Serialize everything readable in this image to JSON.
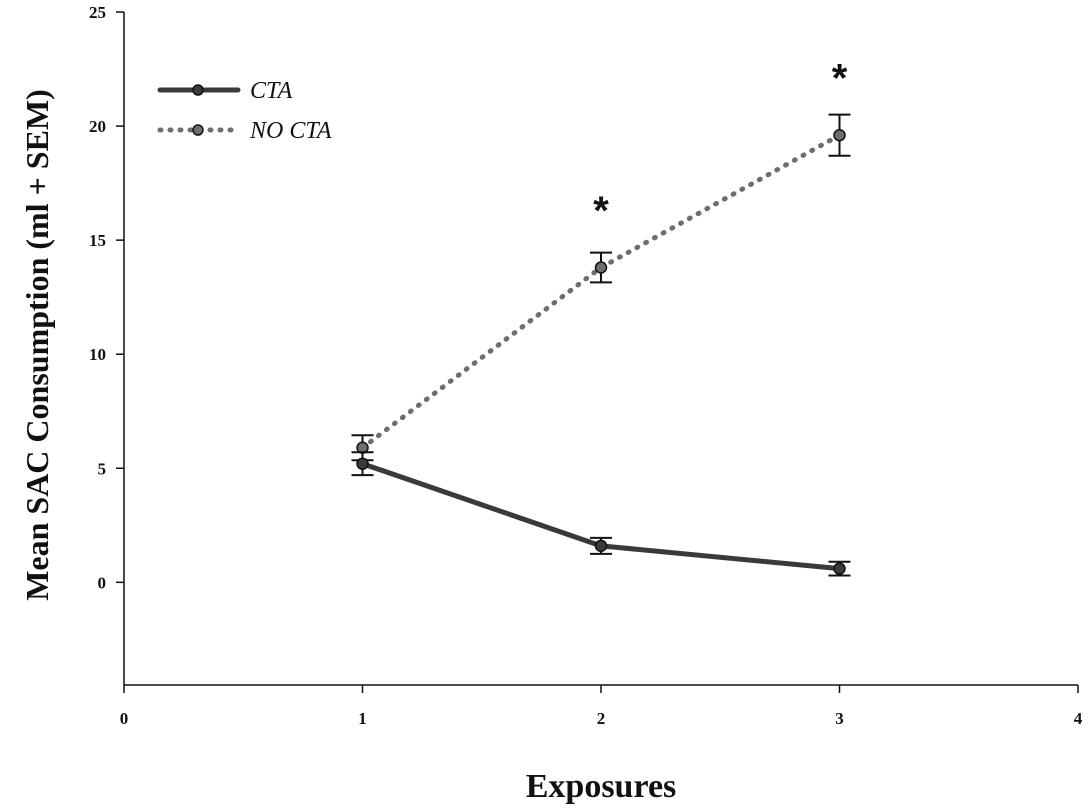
{
  "chart_data": {
    "type": "line",
    "xlabel": "Exposures",
    "ylabel": "Mean SAC Consumption (ml + SEM)",
    "xlim": [
      0,
      4
    ],
    "ylim": [
      -4.5,
      25
    ],
    "x_ticks": [
      "0",
      "1",
      "2",
      "3",
      "4"
    ],
    "y_ticks": [
      "0",
      "5",
      "10",
      "15",
      "20",
      "25"
    ],
    "grid": false,
    "legend_position": "top-left",
    "x": [
      1,
      2,
      3
    ],
    "series": [
      {
        "name": "CTA",
        "style": "solid",
        "color": "#3a3a3a",
        "values": [
          5.2,
          1.6,
          0.6
        ],
        "sem": [
          0.5,
          0.35,
          0.3
        ]
      },
      {
        "name": "NO CTA",
        "style": "dotted",
        "color": "#6e6e6e",
        "values": [
          5.9,
          13.8,
          19.6
        ],
        "sem": [
          0.55,
          0.65,
          0.9
        ]
      }
    ],
    "annotations": [
      {
        "text": "*",
        "x": 2,
        "y": 16.5
      },
      {
        "text": "*",
        "x": 3,
        "y": 22.3
      }
    ]
  }
}
